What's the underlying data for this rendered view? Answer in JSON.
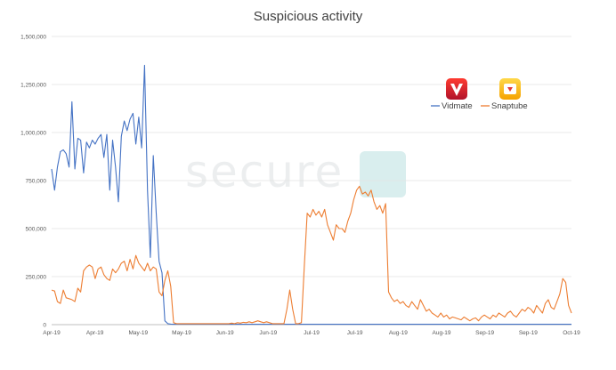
{
  "chart_data": {
    "type": "line",
    "title": "Suspicious activity",
    "xlabel": "",
    "ylabel": "",
    "ylim": [
      0,
      1500000
    ],
    "y_ticks": [
      "0",
      "250,000",
      "500,000",
      "750,000",
      "1,000,000",
      "1,250,000",
      "1,500,000"
    ],
    "y_tick_values": [
      0,
      250000,
      500000,
      750000,
      1000000,
      1250000,
      1500000
    ],
    "x_ticks": [
      "Apr-19",
      "Apr-19",
      "May-19",
      "May-19",
      "Jun-19",
      "Jun-19",
      "Jul-19",
      "Jul-19",
      "Aug-19",
      "Aug-19",
      "Sep-19",
      "Sep-19",
      "Oct-19"
    ],
    "grid": true,
    "legend_position": "top-right",
    "watermark": "secure",
    "series": [
      {
        "name": "Vidmate",
        "color": "#4472c4",
        "icon": "vidmate-app-icon",
        "values": [
          810000,
          700000,
          820000,
          900000,
          910000,
          890000,
          820000,
          1160000,
          810000,
          970000,
          960000,
          790000,
          950000,
          920000,
          960000,
          940000,
          970000,
          990000,
          870000,
          990000,
          700000,
          960000,
          820000,
          640000,
          980000,
          1060000,
          1010000,
          1070000,
          1100000,
          940000,
          1080000,
          920000,
          1350000,
          700000,
          350000,
          880000,
          580000,
          330000,
          270000,
          20000,
          5000,
          3000,
          2000,
          2000,
          2000,
          2000,
          2000,
          2000,
          2000,
          2000,
          2000,
          2000,
          2000,
          2000,
          2000,
          2000,
          2000,
          2000,
          2000,
          2000,
          2000,
          2000,
          2000,
          2000,
          2000,
          2000,
          2000,
          2000,
          2000,
          2000,
          2000,
          2000,
          2000,
          2000,
          2000,
          2000,
          2000,
          2000,
          2000,
          2000,
          2000,
          2000,
          2000,
          2000,
          2000,
          2000,
          2000,
          2000,
          2000,
          2000,
          2000,
          2000,
          2000,
          2000,
          2000,
          2000,
          2000,
          2000,
          2000,
          2000,
          2000,
          2000,
          2000,
          2000,
          2000,
          2000,
          2000,
          2000,
          2000,
          2000,
          2000,
          2000,
          2000,
          2000,
          2000,
          2000,
          2000,
          2000,
          2000,
          2000,
          2000,
          2000,
          2000,
          2000,
          2000,
          2000,
          2000,
          2000,
          2000,
          2000,
          2000,
          2000,
          2000,
          2000,
          2000,
          2000,
          2000,
          2000,
          2000,
          2000,
          2000,
          2000,
          2000,
          2000,
          2000,
          2000,
          2000,
          2000,
          2000,
          2000,
          2000,
          2000,
          2000,
          2000,
          2000,
          2000,
          2000,
          2000,
          2000,
          2000,
          2000,
          2000,
          2000,
          2000,
          2000,
          2000,
          2000,
          2000,
          2000,
          2000,
          2000,
          2000,
          2000,
          2000,
          2000,
          2000,
          2000,
          2000,
          2000,
          2000
        ]
      },
      {
        "name": "Snaptube",
        "color": "#ed7d31",
        "icon": "snaptube-app-icon",
        "values": [
          180000,
          175000,
          120000,
          110000,
          180000,
          140000,
          135000,
          130000,
          120000,
          190000,
          170000,
          280000,
          300000,
          310000,
          300000,
          240000,
          290000,
          300000,
          260000,
          240000,
          230000,
          290000,
          270000,
          290000,
          320000,
          330000,
          280000,
          340000,
          290000,
          360000,
          320000,
          300000,
          280000,
          320000,
          280000,
          300000,
          290000,
          170000,
          150000,
          230000,
          280000,
          200000,
          10000,
          5000,
          5000,
          5000,
          5000,
          5000,
          5000,
          5000,
          5000,
          5000,
          5000,
          5000,
          5000,
          5000,
          5000,
          5000,
          5000,
          5000,
          5000,
          5000,
          8000,
          5000,
          10000,
          8000,
          12000,
          10000,
          15000,
          10000,
          15000,
          20000,
          15000,
          10000,
          15000,
          10000,
          5000,
          5000,
          5000,
          5000,
          5000,
          80000,
          180000,
          80000,
          5000,
          5000,
          10000,
          300000,
          580000,
          560000,
          600000,
          570000,
          590000,
          560000,
          600000,
          520000,
          480000,
          440000,
          520000,
          500000,
          500000,
          480000,
          540000,
          580000,
          650000,
          700000,
          720000,
          680000,
          690000,
          670000,
          700000,
          640000,
          600000,
          620000,
          580000,
          630000,
          170000,
          140000,
          120000,
          130000,
          110000,
          120000,
          100000,
          90000,
          120000,
          100000,
          80000,
          130000,
          100000,
          70000,
          80000,
          60000,
          50000,
          40000,
          60000,
          40000,
          50000,
          30000,
          40000,
          35000,
          30000,
          25000,
          40000,
          30000,
          20000,
          30000,
          35000,
          20000,
          40000,
          50000,
          40000,
          30000,
          50000,
          40000,
          60000,
          50000,
          40000,
          60000,
          70000,
          50000,
          40000,
          60000,
          80000,
          70000,
          90000,
          80000,
          60000,
          100000,
          80000,
          60000,
          110000,
          130000,
          90000,
          80000,
          120000,
          160000,
          240000,
          220000,
          100000,
          60000
        ]
      }
    ]
  }
}
